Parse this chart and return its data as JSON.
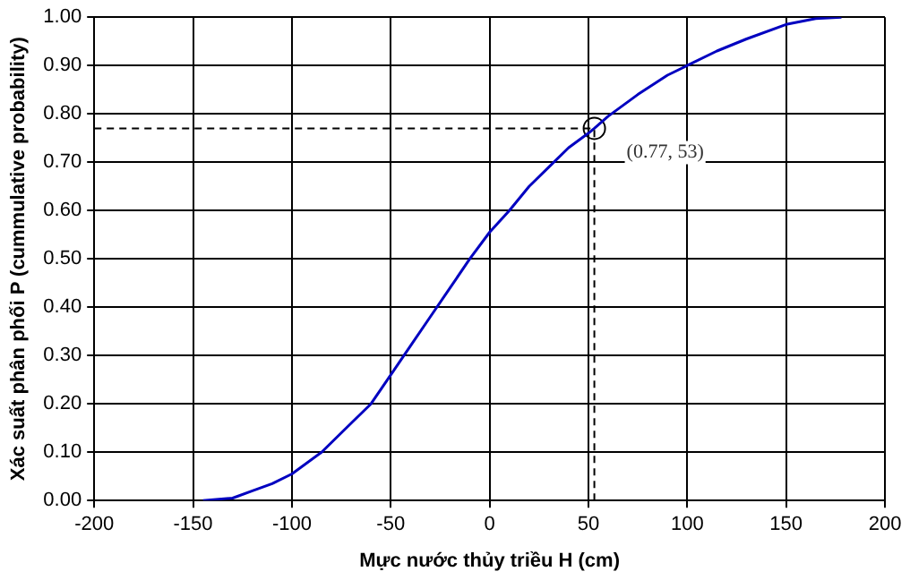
{
  "chart_data": {
    "type": "line",
    "xlabel": "Mực nước thủy triều H (cm)",
    "ylabel": "Xác suất phân phối P (cummulative probability)",
    "xlim": [
      -200,
      200
    ],
    "xticks": [
      -200,
      -150,
      -100,
      -50,
      0,
      50,
      100,
      150,
      200
    ],
    "ylim": [
      0,
      1
    ],
    "yticks": [
      {
        "value": 0,
        "label": "0.00"
      },
      {
        "value": 0.1,
        "label": "0.10"
      },
      {
        "value": 0.2,
        "label": "0.20"
      },
      {
        "value": 0.3,
        "label": "0.30"
      },
      {
        "value": 0.4,
        "label": "0.40"
      },
      {
        "value": 0.5,
        "label": "0.50"
      },
      {
        "value": 0.6,
        "label": "0.60"
      },
      {
        "value": 0.7,
        "label": "0.70"
      },
      {
        "value": 0.8,
        "label": "0.80"
      },
      {
        "value": 0.9,
        "label": "0.90"
      },
      {
        "value": 1,
        "label": "1.00"
      }
    ],
    "grid": true,
    "legend": false,
    "series": [
      {
        "color": "#0000c0",
        "marker": "none",
        "line_style": "solid",
        "x": [
          -145,
          -130,
          -120,
          -110,
          -100,
          -85,
          -70,
          -60,
          -50,
          -40,
          -30,
          -20,
          -10,
          0,
          10,
          20,
          30,
          40,
          50,
          53,
          60,
          75,
          90,
          100,
          115,
          130,
          150,
          165,
          178
        ],
        "values": [
          0,
          0.005,
          0.02,
          0.035,
          0.055,
          0.1,
          0.16,
          0.2,
          0.26,
          0.32,
          0.38,
          0.44,
          0.5,
          0.555,
          0.6,
          0.65,
          0.69,
          0.73,
          0.76,
          0.77,
          0.795,
          0.84,
          0.88,
          0.9,
          0.93,
          0.955,
          0.985,
          0.997,
          1
        ]
      },
      {
        "type": "scatter",
        "color": "#000000",
        "marker": "circle",
        "x": [
          53
        ],
        "values": [
          0.77
        ]
      }
    ],
    "ref_lines": [
      {
        "axis": "y",
        "value": 0.77,
        "color": "#000000",
        "line_style": "dashed"
      },
      {
        "axis": "x",
        "value": 53,
        "color": "#000000",
        "line_style": "dashed"
      }
    ],
    "annotations": [
      {
        "text": "(0.77, 53)",
        "x": 53,
        "y": 0.77
      }
    ]
  }
}
